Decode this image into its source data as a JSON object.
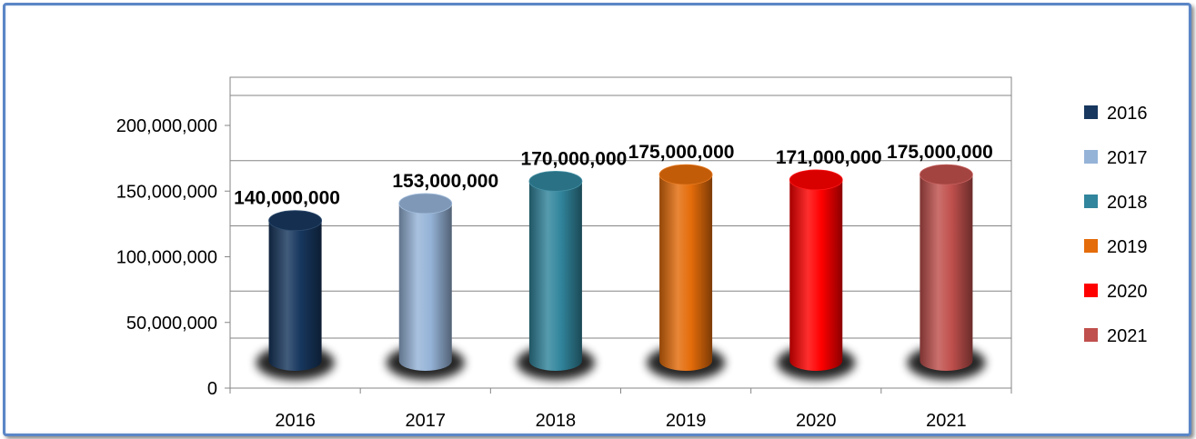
{
  "chart_data": {
    "type": "bar",
    "style": "3d-cylinder",
    "title": "",
    "xlabel": "",
    "ylabel": "",
    "categories": [
      "2016",
      "2017",
      "2018",
      "2019",
      "2020",
      "2021"
    ],
    "values": [
      140000000,
      153000000,
      170000000,
      175000000,
      171000000,
      175000000
    ],
    "value_labels": [
      "140,000,000",
      "153,000,000",
      "170,000,000",
      "175,000,000",
      "171,000,000",
      "175,000,000"
    ],
    "ylim": [
      0,
      200000000
    ],
    "yticks": [
      0,
      50000000,
      100000000,
      150000000,
      200000000
    ],
    "ytick_labels": [
      "0",
      "50,000,000",
      "100,000,000",
      "150,000,000",
      "200,000,000"
    ],
    "grid": true,
    "legend": {
      "position": "right",
      "entries": [
        "2016",
        "2017",
        "2018",
        "2019",
        "2020",
        "2021"
      ]
    },
    "colors": [
      "#17375e",
      "#95b3d7",
      "#31859c",
      "#e46c0a",
      "#ff0000",
      "#c0504d"
    ],
    "border_color": "#5b86c6"
  }
}
